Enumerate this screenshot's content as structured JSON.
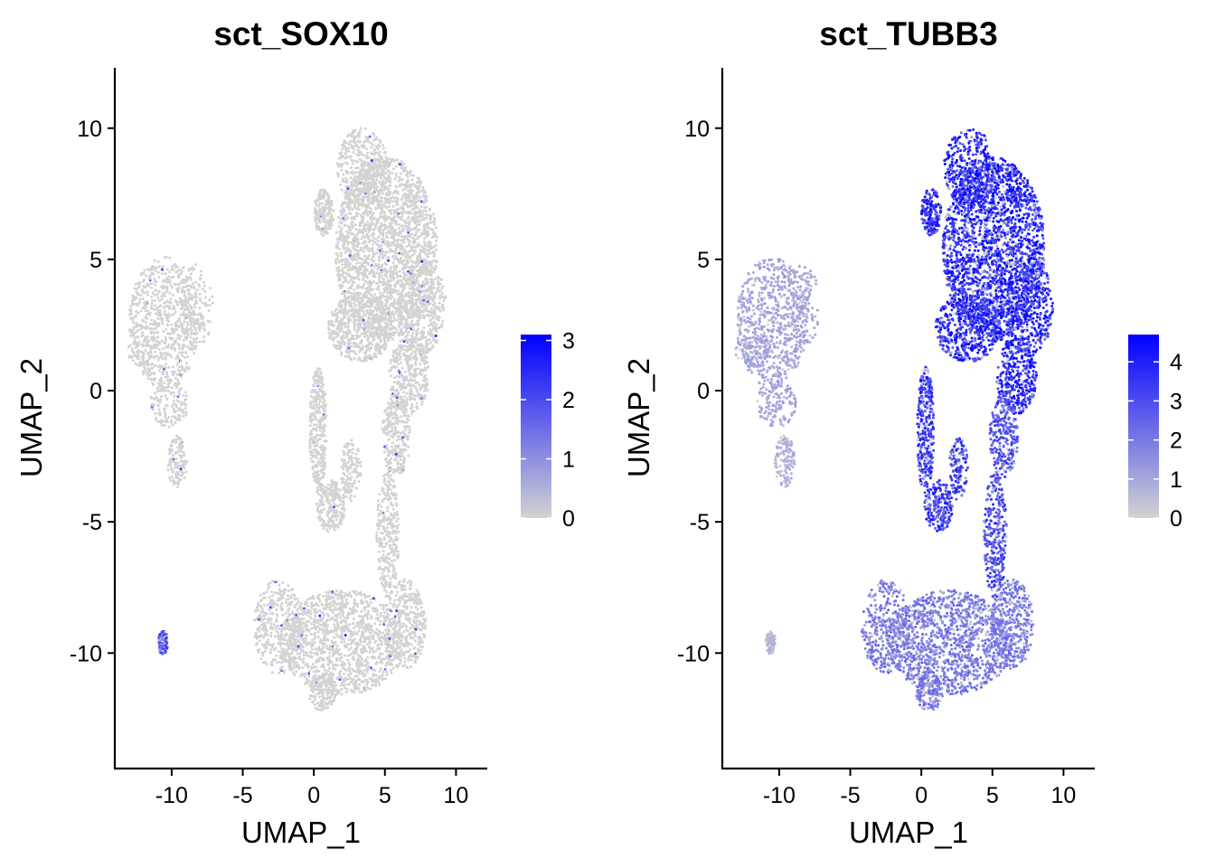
{
  "chart_data": [
    {
      "type": "scatter",
      "title": "sct_SOX10",
      "xlabel": "UMAP_1",
      "ylabel": "UMAP_2",
      "xlim": [
        -14,
        12.2
      ],
      "ylim": [
        -14.4,
        12.3
      ],
      "xticks": [
        -10,
        -5,
        0,
        5,
        10
      ],
      "xtick_labels": [
        "-10",
        "-5",
        "0",
        "5",
        "10"
      ],
      "yticks": [
        -10,
        -5,
        0,
        5,
        10
      ],
      "ytick_labels": [
        "-10",
        "-5",
        "0",
        "5",
        "10"
      ],
      "grid": false,
      "legend": {
        "placement": "right",
        "min": 0,
        "max": 3.1,
        "ticks": [
          0,
          1,
          2,
          3
        ],
        "tick_labels": [
          "0",
          "1",
          "2",
          "3"
        ],
        "low_color": "#d3d3d3",
        "high_color": "#0000ff"
      },
      "expression_summary": [
        {
          "region": "left upper cluster",
          "center": [
            -10.5,
            2.5
          ],
          "level": 0.02
        },
        {
          "region": "left lower tail",
          "center": [
            -9.7,
            -2.7
          ],
          "level": 0.02
        },
        {
          "region": "small isolated cluster",
          "center": [
            -10.6,
            -9.6
          ],
          "level": 2.2
        },
        {
          "region": "large upper cluster",
          "center": [
            5,
            5
          ],
          "level": 0.05
        },
        {
          "region": "thin branch",
          "center": [
            0.5,
            -2
          ],
          "level": 0.03
        },
        {
          "region": "stalk",
          "center": [
            5.5,
            -4
          ],
          "level": 0.02
        },
        {
          "region": "bottom cluster",
          "center": [
            3,
            -10
          ],
          "level": 0.05
        }
      ]
    },
    {
      "type": "scatter",
      "title": "sct_TUBB3",
      "xlabel": "UMAP_1",
      "ylabel": "UMAP_2",
      "xlim": [
        -14,
        12.2
      ],
      "ylim": [
        -14.4,
        12.3
      ],
      "xticks": [
        -10,
        -5,
        0,
        5,
        10
      ],
      "xtick_labels": [
        "-10",
        "-5",
        "0",
        "5",
        "10"
      ],
      "yticks": [
        -10,
        -5,
        0,
        5,
        10
      ],
      "ytick_labels": [
        "-10",
        "-5",
        "0",
        "5",
        "10"
      ],
      "grid": false,
      "legend": {
        "placement": "right",
        "min": 0,
        "max": 4.7,
        "ticks": [
          0,
          1,
          2,
          3,
          4
        ],
        "tick_labels": [
          "0",
          "1",
          "2",
          "3",
          "4"
        ],
        "low_color": "#d3d3d3",
        "high_color": "#0000ff"
      },
      "expression_summary": [
        {
          "region": "left upper cluster",
          "center": [
            -10.5,
            2.5
          ],
          "level": 1.2
        },
        {
          "region": "left lower tail",
          "center": [
            -9.7,
            -2.7
          ],
          "level": 1.0
        },
        {
          "region": "small isolated cluster",
          "center": [
            -10.6,
            -9.6
          ],
          "level": 0.8
        },
        {
          "region": "large upper cluster",
          "center": [
            5,
            5
          ],
          "level": 4.3
        },
        {
          "region": "thin branch",
          "center": [
            0.5,
            -2
          ],
          "level": 3.8
        },
        {
          "region": "stalk",
          "center": [
            5.5,
            -4
          ],
          "level": 3.3
        },
        {
          "region": "bottom cluster",
          "center": [
            3,
            -10
          ],
          "level": 2.3
        }
      ]
    }
  ],
  "colors": {
    "background": "#ffffff",
    "axis": "#000000",
    "low_expression": "#d3d3d3",
    "high_expression": "#0000ff"
  }
}
